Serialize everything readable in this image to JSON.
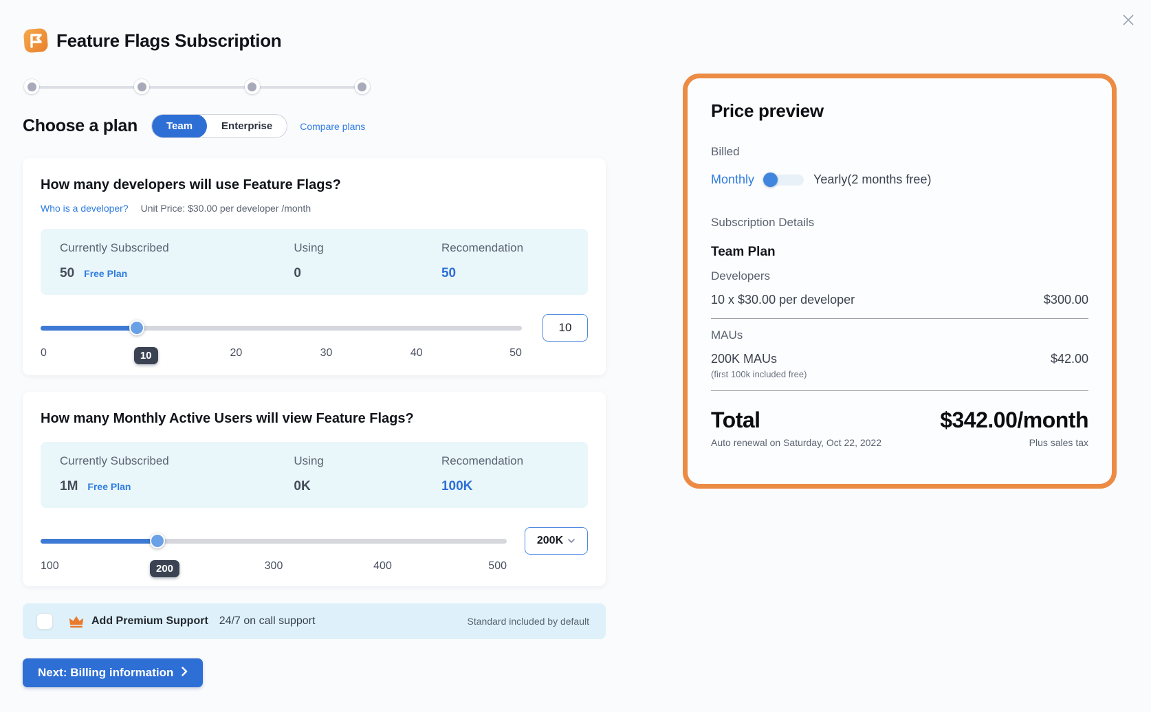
{
  "window": {
    "title": "Feature Flags Subscription"
  },
  "stepper": {
    "step_count": 4
  },
  "plan_chooser": {
    "heading": "Choose a plan",
    "team_label": "Team",
    "enterprise_label": "Enterprise",
    "selected": "Team",
    "compare_link": "Compare plans"
  },
  "developers_card": {
    "heading": "How many developers will use Feature Flags?",
    "who_link": "Who is a developer?",
    "unit_price": "Unit Price: $30.00 per developer /month",
    "stats": {
      "currently_subscribed_label": "Currently Subscribed",
      "currently_subscribed_value": "50",
      "plan_badge": "Free Plan",
      "using_label": "Using",
      "using_value": "0",
      "recommendation_label": "Recomendation",
      "recommendation_value": "50"
    },
    "slider": {
      "min": 0,
      "max": 50,
      "value": 10,
      "ticks": [
        "0",
        "20",
        "30",
        "40",
        "50"
      ],
      "badge": "10"
    },
    "input_value": "10"
  },
  "maus_card": {
    "heading": "How many Monthly Active Users will view Feature Flags?",
    "stats": {
      "currently_subscribed_label": "Currently Subscribed",
      "currently_subscribed_value": "1M",
      "plan_badge": "Free Plan",
      "using_label": "Using",
      "using_value": "0K",
      "recommendation_label": "Recomendation",
      "recommendation_value": "100K"
    },
    "slider": {
      "min": 100,
      "max": 500,
      "value": 200,
      "ticks": [
        "100",
        "300",
        "400",
        "500"
      ],
      "badge": "200"
    },
    "dropdown_value": "200K"
  },
  "premium_row": {
    "checkbox_checked": false,
    "title": "Add Premium Support",
    "subtitle": "24/7 on call support",
    "note": "Standard included by default"
  },
  "next_button": {
    "label": "Next: Billing information"
  },
  "price_preview": {
    "heading": "Price preview",
    "billed_label": "Billed",
    "monthly_label": "Monthly",
    "yearly_label": "Yearly(2 months free)",
    "billing_period_selected": "Monthly",
    "subscription_details_label": "Subscription Details",
    "plan_name": "Team Plan",
    "developers_label": "Developers",
    "developers_line": "10 x $30.00 per developer",
    "developers_price": "$300.00",
    "maus_label": "MAUs",
    "maus_line": "200K MAUs",
    "maus_note": "(first 100k included free)",
    "maus_price": "$42.00",
    "total_label": "Total",
    "total_value": "$342.00/month",
    "renewal_note": "Auto renewal on Saturday, Oct 22, 2022",
    "tax_note": "Plus sales tax"
  },
  "colors": {
    "accent_blue": "#2e6fd6",
    "link_blue": "#2f7ce0",
    "highlight_orange": "#ec8b44",
    "crown_orange": "#e87c2e",
    "info_box_blue": "#e9f6fa",
    "premium_row_blue": "#def1fa",
    "badge_dark": "#3b4353"
  }
}
